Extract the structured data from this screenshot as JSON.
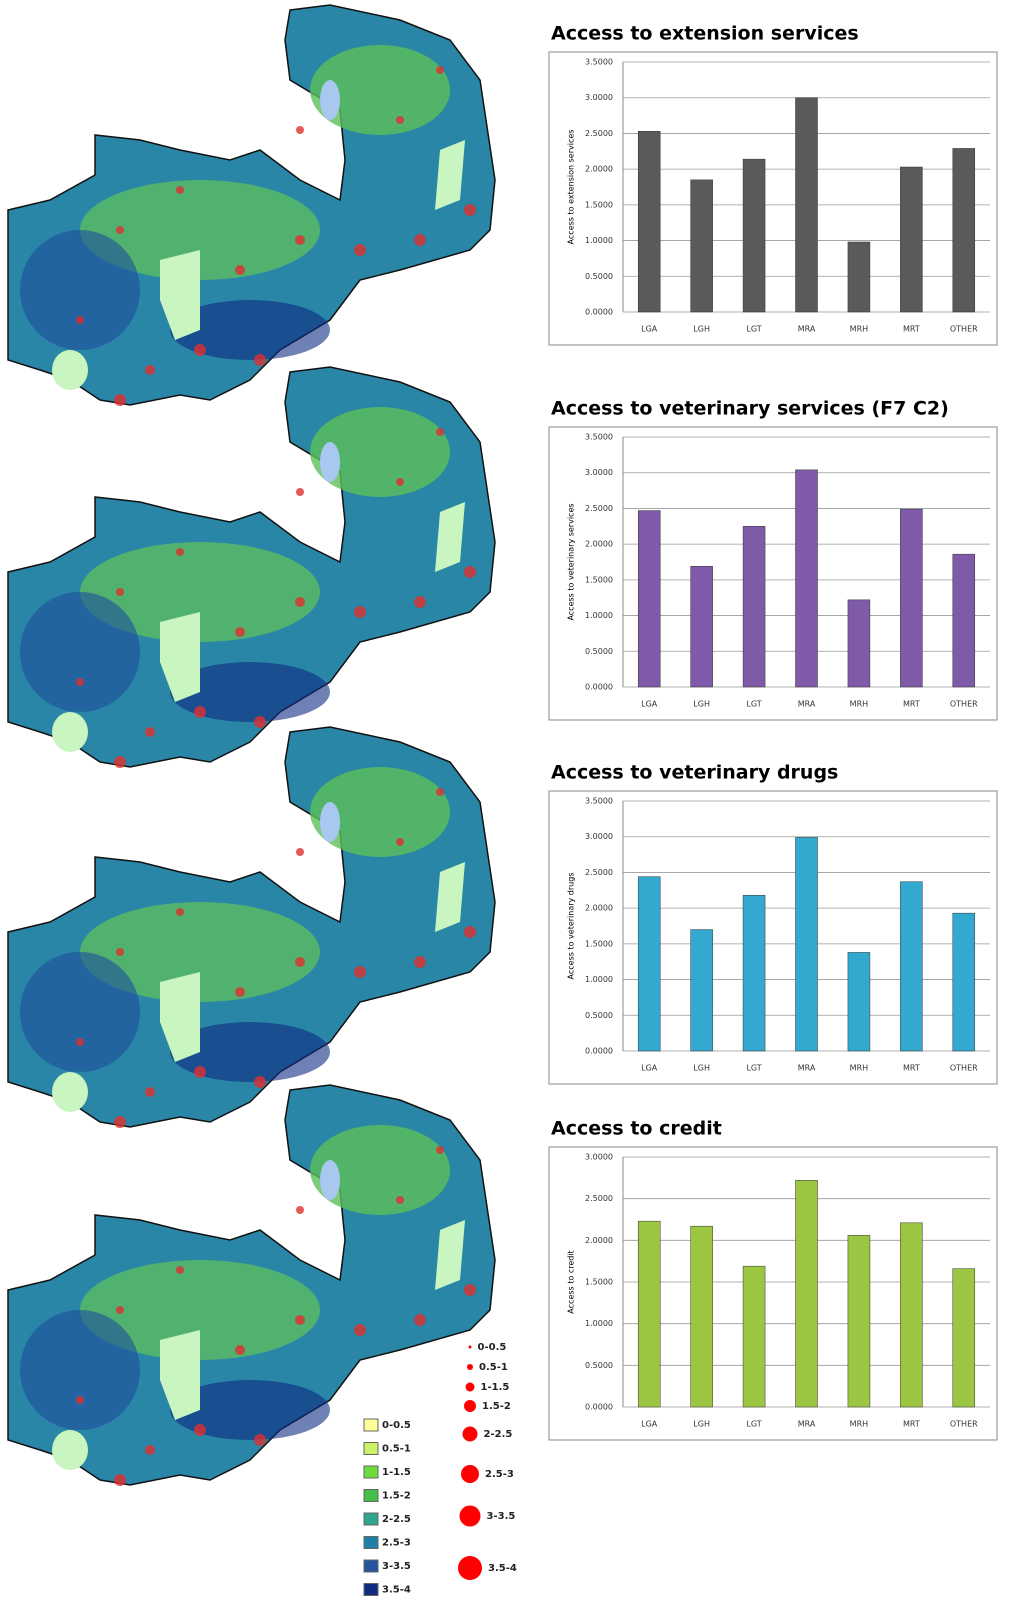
{
  "chart_data": [
    {
      "type": "bar",
      "title": "Access to extension services",
      "y_label": "Access to extension services",
      "categories": [
        "LGA",
        "LGH",
        "LGT",
        "MRA",
        "MRH",
        "MRT",
        "OTHER"
      ],
      "values": [
        2.53,
        1.85,
        2.14,
        3.0,
        0.98,
        2.03,
        2.29
      ],
      "color": "#5a5a5a",
      "ylim": [
        0,
        3.5
      ],
      "yticks": [
        {
          "value": 0,
          "label": "0.0000"
        },
        {
          "value": 0.5,
          "label": "0.5000"
        },
        {
          "value": 1,
          "label": "1.0000"
        },
        {
          "value": 1.5,
          "label": "1.5000"
        },
        {
          "value": 2,
          "label": "2.0000"
        },
        {
          "value": 2.5,
          "label": "2.5000"
        },
        {
          "value": 3,
          "label": "3.0000"
        },
        {
          "value": 3.5,
          "label": "3.5000"
        }
      ],
      "grid": true
    },
    {
      "type": "bar",
      "title": "Access to veterinary services (F7 C2)",
      "y_label": "Access to veterinary services",
      "categories": [
        "LGA",
        "LGH",
        "LGT",
        "MRA",
        "MRH",
        "MRT",
        "OTHER"
      ],
      "values": [
        2.47,
        1.69,
        2.25,
        3.04,
        1.22,
        2.49,
        1.86
      ],
      "color": "#7e5aa8",
      "ylim": [
        0,
        3.5
      ],
      "yticks": [
        {
          "value": 0,
          "label": "0.0000"
        },
        {
          "value": 0.5,
          "label": "0.5000"
        },
        {
          "value": 1,
          "label": "1.0000"
        },
        {
          "value": 1.5,
          "label": "1.5000"
        },
        {
          "value": 2,
          "label": "2.0000"
        },
        {
          "value": 2.5,
          "label": "2.5000"
        },
        {
          "value": 3,
          "label": "3.0000"
        },
        {
          "value": 3.5,
          "label": "3.5000"
        }
      ],
      "grid": true
    },
    {
      "type": "bar",
      "title": "Access to veterinary drugs",
      "y_label": "Access to veterinary drugs",
      "categories": [
        "LGA",
        "LGH",
        "LGT",
        "MRA",
        "MRH",
        "MRT",
        "OTHER"
      ],
      "values": [
        2.44,
        1.7,
        2.18,
        2.99,
        1.38,
        2.37,
        1.93
      ],
      "color": "#33a9cf",
      "ylim": [
        0,
        3.5
      ],
      "yticks": [
        {
          "value": 0,
          "label": "0.0000"
        },
        {
          "value": 0.5,
          "label": "0.5000"
        },
        {
          "value": 1,
          "label": "1.0000"
        },
        {
          "value": 1.5,
          "label": "1.5000"
        },
        {
          "value": 2,
          "label": "2.0000"
        },
        {
          "value": 2.5,
          "label": "2.5000"
        },
        {
          "value": 3,
          "label": "3.0000"
        },
        {
          "value": 3.5,
          "label": "3.5000"
        }
      ],
      "grid": true
    },
    {
      "type": "bar",
      "title": "Access to credit",
      "y_label": "Access to credit",
      "categories": [
        "LGA",
        "LGH",
        "LGT",
        "MRA",
        "MRH",
        "MRT",
        "OTHER"
      ],
      "values": [
        2.23,
        2.17,
        1.69,
        2.72,
        2.06,
        2.21,
        1.66
      ],
      "color": "#9cc641",
      "ylim": [
        0,
        3
      ],
      "yticks": [
        {
          "value": 0,
          "label": "0.0000"
        },
        {
          "value": 0.5,
          "label": "0.5000"
        },
        {
          "value": 1,
          "label": "1.0000"
        },
        {
          "value": 1.5,
          "label": "1.5000"
        },
        {
          "value": 2,
          "label": "2.0000"
        },
        {
          "value": 2.5,
          "label": "2.5000"
        },
        {
          "value": 3,
          "label": "3.0000"
        }
      ],
      "grid": true
    }
  ],
  "map_legend": {
    "fill_classes": [
      {
        "label": "0-0.5",
        "color": "#ffff99"
      },
      {
        "label": "0.5-1",
        "color": "#ccf266"
      },
      {
        "label": "1-1.5",
        "color": "#6fdc3e"
      },
      {
        "label": "1.5-2",
        "color": "#44c04a"
      },
      {
        "label": "2-2.5",
        "color": "#2ea58c"
      },
      {
        "label": "2.5-3",
        "color": "#1f7fa8"
      },
      {
        "label": "3-3.5",
        "color": "#24549e"
      },
      {
        "label": "3.5-4",
        "color": "#0f2b82"
      }
    ],
    "dot_classes": [
      "0-0.5",
      "0.5-1",
      "1-1.5",
      "1.5-2",
      "2-2.5",
      "2.5-3",
      "3-3.5",
      "3.5-4"
    ],
    "dot_color": "#ff0000"
  }
}
